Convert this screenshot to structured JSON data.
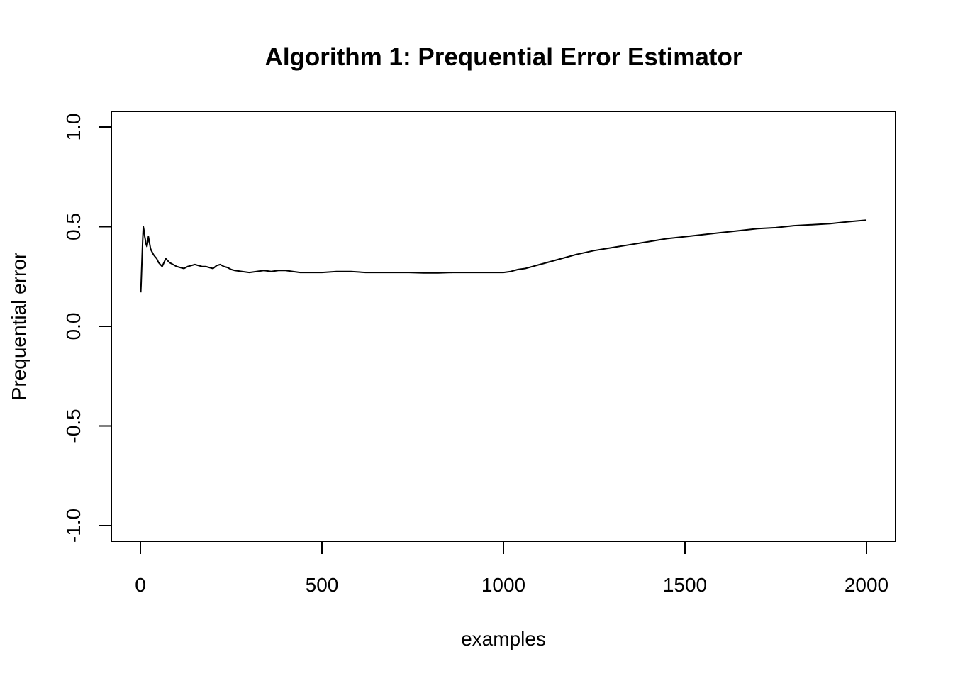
{
  "chart_data": {
    "type": "line",
    "title": "Algorithm 1: Prequential Error Estimator",
    "xlabel": "examples",
    "ylabel": "Prequential error",
    "xlim": [
      0,
      2000
    ],
    "ylim": [
      -1.0,
      1.0
    ],
    "x_ticks": [
      "0",
      "500",
      "1000",
      "1500",
      "2000"
    ],
    "y_ticks": [
      "-1.0",
      "-0.5",
      "0.0",
      "0.5",
      "1.0"
    ],
    "grid": false,
    "legend": "none",
    "line_color": "#000000",
    "series": [
      {
        "x": [
          1,
          2,
          3,
          4,
          5,
          6,
          7,
          8,
          10,
          12,
          14,
          16,
          18,
          20,
          22,
          24,
          26,
          28,
          30,
          33,
          36,
          40,
          45,
          50,
          55,
          60,
          65,
          70,
          75,
          80,
          90,
          100,
          110,
          120,
          130,
          140,
          150,
          160,
          170,
          180,
          190,
          200,
          210,
          220,
          230,
          240,
          250,
          260,
          280,
          300,
          320,
          340,
          360,
          380,
          400,
          420,
          440,
          460,
          480,
          500,
          540,
          580,
          620,
          660,
          700,
          740,
          780,
          820,
          860,
          900,
          940,
          980,
          1000,
          1020,
          1040,
          1060,
          1080,
          1100,
          1150,
          1200,
          1250,
          1300,
          1350,
          1400,
          1450,
          1500,
          1550,
          1600,
          1650,
          1700,
          1750,
          1800,
          1850,
          1900,
          1950,
          2000
        ],
        "y": [
          0.17,
          0.21,
          0.26,
          0.31,
          0.37,
          0.42,
          0.46,
          0.5,
          0.48,
          0.45,
          0.43,
          0.41,
          0.4,
          0.42,
          0.45,
          0.43,
          0.41,
          0.39,
          0.38,
          0.37,
          0.36,
          0.35,
          0.34,
          0.32,
          0.31,
          0.3,
          0.32,
          0.34,
          0.33,
          0.32,
          0.31,
          0.3,
          0.295,
          0.29,
          0.3,
          0.305,
          0.31,
          0.305,
          0.3,
          0.3,
          0.295,
          0.29,
          0.305,
          0.31,
          0.3,
          0.295,
          0.285,
          0.28,
          0.275,
          0.27,
          0.275,
          0.28,
          0.275,
          0.28,
          0.28,
          0.275,
          0.27,
          0.27,
          0.27,
          0.27,
          0.275,
          0.275,
          0.27,
          0.27,
          0.27,
          0.27,
          0.268,
          0.268,
          0.27,
          0.27,
          0.27,
          0.27,
          0.27,
          0.275,
          0.285,
          0.29,
          0.3,
          0.31,
          0.335,
          0.36,
          0.38,
          0.395,
          0.41,
          0.425,
          0.44,
          0.45,
          0.46,
          0.47,
          0.48,
          0.49,
          0.495,
          0.505,
          0.51,
          0.515,
          0.525,
          0.533
        ]
      }
    ]
  }
}
